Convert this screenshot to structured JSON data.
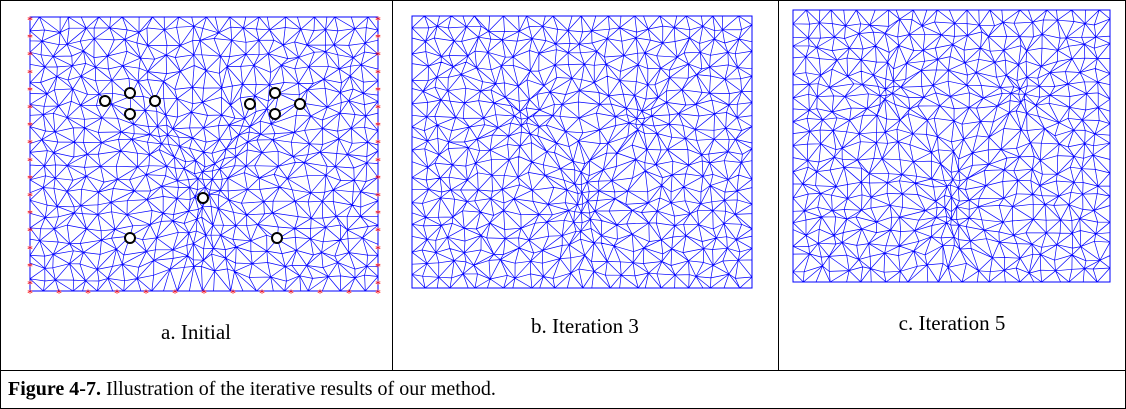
{
  "figure": {
    "panels": [
      {
        "label": "a. Initial"
      },
      {
        "label": "b. Iteration 3"
      },
      {
        "label": "c. Iteration 5"
      }
    ],
    "caption": {
      "number": "Figure 4-7.",
      "text": "Illustration of the iterative results of our method."
    }
  }
}
